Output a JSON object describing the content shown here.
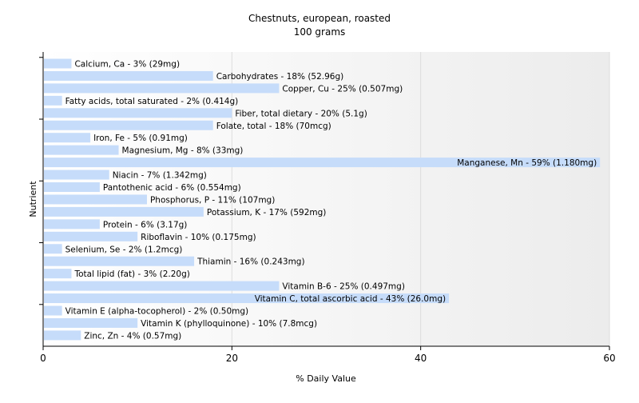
{
  "chart_data": {
    "type": "bar",
    "orientation": "horizontal",
    "title": "Chestnuts, european, roasted",
    "subtitle": "100 grams",
    "xlabel": "% Daily Value",
    "ylabel": "Nutrient",
    "xlim": [
      0,
      60
    ],
    "xticks": [
      0,
      20,
      40,
      60
    ],
    "grid": true,
    "bar_color": "#c6dcfa",
    "categories": [
      "Calcium, Ca",
      "Carbohydrates",
      "Copper, Cu",
      "Fatty acids, total saturated",
      "Fiber, total dietary",
      "Folate, total",
      "Iron, Fe",
      "Magnesium, Mg",
      "Manganese, Mn",
      "Niacin",
      "Pantothenic acid",
      "Phosphorus, P",
      "Potassium, K",
      "Protein",
      "Riboflavin",
      "Selenium, Se",
      "Thiamin",
      "Total lipid (fat)",
      "Vitamin B-6",
      "Vitamin C, total ascorbic acid",
      "Vitamin E (alpha-tocopherol)",
      "Vitamin K (phylloquinone)",
      "Zinc, Zn"
    ],
    "values": [
      3,
      18,
      25,
      2,
      20,
      18,
      5,
      8,
      59,
      7,
      6,
      11,
      17,
      6,
      10,
      2,
      16,
      3,
      25,
      43,
      2,
      10,
      4
    ],
    "labels": [
      "Calcium, Ca - 3% (29mg)",
      "Carbohydrates - 18% (52.96g)",
      "Copper, Cu - 25% (0.507mg)",
      "Fatty acids, total saturated - 2% (0.414g)",
      "Fiber, total dietary - 20% (5.1g)",
      "Folate, total - 18% (70mcg)",
      "Iron, Fe - 5% (0.91mg)",
      "Magnesium, Mg - 8% (33mg)",
      "Manganese, Mn - 59% (1.180mg)",
      "Niacin - 7% (1.342mg)",
      "Pantothenic acid - 6% (0.554mg)",
      "Phosphorus, P - 11% (107mg)",
      "Potassium, K - 17% (592mg)",
      "Protein - 6% (3.17g)",
      "Riboflavin - 10% (0.175mg)",
      "Selenium, Se - 2% (1.2mcg)",
      "Thiamin - 16% (0.243mg)",
      "Total lipid (fat) - 3% (2.20g)",
      "Vitamin B-6 - 25% (0.497mg)",
      "Vitamin C, total ascorbic acid - 43% (26.0mg)",
      "Vitamin E (alpha-tocopherol) - 2% (0.50mg)",
      "Vitamin K (phylloquinone) - 10% (7.8mcg)",
      "Zinc, Zn - 4% (0.57mg)"
    ]
  }
}
